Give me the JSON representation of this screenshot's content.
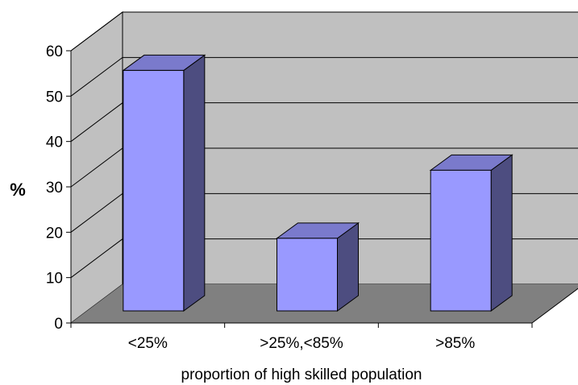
{
  "chart_data": {
    "type": "bar",
    "style": "3d-column",
    "categories": [
      "<25%",
      ">25%,<85%",
      ">85%"
    ],
    "values": [
      53,
      16,
      31
    ],
    "xlabel": "proportion of high skilled population",
    "ylabel": "%",
    "ylim": [
      0,
      60
    ],
    "yticks": [
      "0",
      "10",
      "20",
      "30",
      "40",
      "50",
      "60"
    ],
    "grid": true,
    "legend": "none",
    "colors": {
      "bar_front": "#9999ff",
      "bar_top": "#7a7acc",
      "bar_side": "#4d4d80",
      "back_wall": "#c0c0c0",
      "floor": "#808080",
      "gridline": "#000000"
    }
  }
}
